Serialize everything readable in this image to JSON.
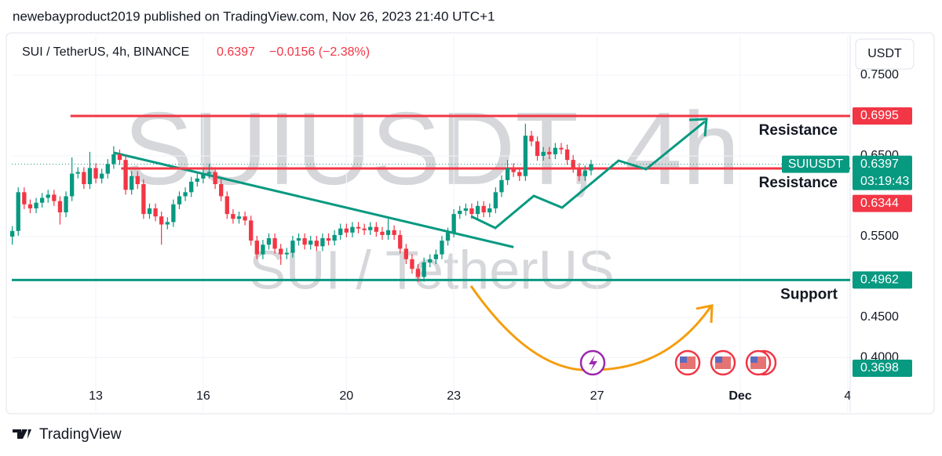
{
  "header": "newebayproduct2019 published on TradingView.com, Nov 26, 2023 21:40 UTC+1",
  "footer": "TradingView",
  "chart_data": {
    "type": "candlestick",
    "symbol": "SUI / TetherUS, 4h, BINANCE",
    "price": 0.6397,
    "change": "−0.0156 (−2.38%)",
    "currency": "USDT",
    "watermark": [
      "SUIUSDT, 4h",
      "SUI / TetherUS"
    ],
    "up_color": "#089981",
    "down_color": "#f23645",
    "xlim": [
      "2023-11-10 15:40",
      "2023-12-04 01:40"
    ],
    "xticks": [
      {
        "value": "2023-11-13 00:00",
        "label": "13"
      },
      {
        "value": "2023-11-16 00:00",
        "label": "16"
      },
      {
        "value": "2023-11-20 00:00",
        "label": "20"
      },
      {
        "value": "2023-11-23 00:00",
        "label": "23"
      },
      {
        "value": "2023-11-27 00:00",
        "label": "27"
      },
      {
        "value": "2023-12-01 00:00",
        "label": "Dec"
      },
      {
        "value": "2023-12-04 00:00",
        "label": "4"
      }
    ],
    "ylim": [
      0.3325,
      0.7995
    ],
    "yticks": [
      {
        "value": 0.4,
        "label": "0.4000"
      },
      {
        "value": 0.45,
        "label": "0.4500"
      },
      {
        "value": 0.55,
        "label": "0.5500"
      },
      {
        "value": 0.65,
        "label": "0.6500"
      },
      {
        "value": 0.75,
        "label": "0.7500"
      }
    ],
    "grid": true,
    "x": [
      "2023-11-10 16:00",
      "2023-11-10 20:00",
      "2023-11-11 00:00",
      "2023-11-11 04:00",
      "2023-11-11 08:00",
      "2023-11-11 12:00",
      "2023-11-11 16:00",
      "2023-11-11 20:00",
      "2023-11-12 00:00",
      "2023-11-12 04:00",
      "2023-11-12 08:00",
      "2023-11-12 12:00",
      "2023-11-12 16:00",
      "2023-11-12 20:00",
      "2023-11-13 00:00",
      "2023-11-13 04:00",
      "2023-11-13 08:00",
      "2023-11-13 12:00",
      "2023-11-13 16:00",
      "2023-11-13 20:00",
      "2023-11-14 00:00",
      "2023-11-14 04:00",
      "2023-11-14 08:00",
      "2023-11-14 12:00",
      "2023-11-14 16:00",
      "2023-11-14 20:00",
      "2023-11-15 00:00",
      "2023-11-15 04:00",
      "2023-11-15 08:00",
      "2023-11-15 12:00",
      "2023-11-15 16:00",
      "2023-11-15 20:00",
      "2023-11-16 00:00",
      "2023-11-16 04:00",
      "2023-11-16 08:00",
      "2023-11-16 12:00",
      "2023-11-16 16:00",
      "2023-11-16 20:00",
      "2023-11-17 00:00",
      "2023-11-17 04:00",
      "2023-11-17 08:00",
      "2023-11-17 12:00",
      "2023-11-17 16:00",
      "2023-11-17 20:00",
      "2023-11-18 00:00",
      "2023-11-18 04:00",
      "2023-11-18 08:00",
      "2023-11-18 12:00",
      "2023-11-18 16:00",
      "2023-11-18 20:00",
      "2023-11-19 00:00",
      "2023-11-19 04:00",
      "2023-11-19 08:00",
      "2023-11-19 12:00",
      "2023-11-19 16:00",
      "2023-11-19 20:00",
      "2023-11-20 00:00",
      "2023-11-20 04:00",
      "2023-11-20 08:00",
      "2023-11-20 12:00",
      "2023-11-20 16:00",
      "2023-11-20 20:00",
      "2023-11-21 00:00",
      "2023-11-21 04:00",
      "2023-11-21 08:00",
      "2023-11-21 12:00",
      "2023-11-21 16:00",
      "2023-11-21 20:00",
      "2023-11-22 00:00",
      "2023-11-22 04:00",
      "2023-11-22 08:00",
      "2023-11-22 12:00",
      "2023-11-22 16:00",
      "2023-11-22 20:00",
      "2023-11-23 00:00",
      "2023-11-23 04:00",
      "2023-11-23 08:00",
      "2023-11-23 12:00",
      "2023-11-23 16:00",
      "2023-11-23 20:00",
      "2023-11-24 00:00",
      "2023-11-24 04:00",
      "2023-11-24 08:00",
      "2023-11-24 12:00",
      "2023-11-24 16:00",
      "2023-11-24 20:00",
      "2023-11-25 00:00",
      "2023-11-25 04:00",
      "2023-11-25 08:00",
      "2023-11-25 12:00",
      "2023-11-25 16:00",
      "2023-11-25 20:00",
      "2023-11-26 00:00",
      "2023-11-26 04:00",
      "2023-11-26 08:00",
      "2023-11-26 12:00",
      "2023-11-26 16:00",
      "2023-11-26 20:00"
    ],
    "candles": [
      [
        0.55,
        0.563,
        0.54,
        0.557
      ],
      [
        0.557,
        0.611,
        0.551,
        0.605
      ],
      [
        0.605,
        0.611,
        0.584,
        0.59
      ],
      [
        0.59,
        0.596,
        0.579,
        0.585
      ],
      [
        0.585,
        0.598,
        0.579,
        0.592
      ],
      [
        0.592,
        0.604,
        0.586,
        0.598
      ],
      [
        0.598,
        0.608,
        0.592,
        0.602
      ],
      [
        0.602,
        0.608,
        0.588,
        0.594
      ],
      [
        0.594,
        0.6,
        0.565,
        0.58
      ],
      [
        0.58,
        0.606,
        0.574,
        0.6
      ],
      [
        0.6,
        0.648,
        0.594,
        0.628
      ],
      [
        0.628,
        0.636,
        0.622,
        0.63
      ],
      [
        0.63,
        0.636,
        0.609,
        0.615
      ],
      [
        0.615,
        0.655,
        0.609,
        0.635
      ],
      [
        0.635,
        0.641,
        0.616,
        0.622
      ],
      [
        0.622,
        0.634,
        0.616,
        0.628
      ],
      [
        0.628,
        0.646,
        0.622,
        0.64
      ],
      [
        0.64,
        0.662,
        0.634,
        0.652
      ],
      [
        0.652,
        0.658,
        0.639,
        0.645
      ],
      [
        0.645,
        0.651,
        0.602,
        0.608
      ],
      [
        0.608,
        0.631,
        0.602,
        0.625
      ],
      [
        0.625,
        0.631,
        0.609,
        0.615
      ],
      [
        0.615,
        0.621,
        0.572,
        0.578
      ],
      [
        0.578,
        0.591,
        0.572,
        0.585
      ],
      [
        0.585,
        0.591,
        0.569,
        0.575
      ],
      [
        0.575,
        0.581,
        0.54,
        0.565
      ],
      [
        0.565,
        0.574,
        0.559,
        0.568
      ],
      [
        0.568,
        0.596,
        0.562,
        0.59
      ],
      [
        0.59,
        0.606,
        0.584,
        0.6
      ],
      [
        0.6,
        0.611,
        0.594,
        0.605
      ],
      [
        0.605,
        0.624,
        0.599,
        0.618
      ],
      [
        0.618,
        0.628,
        0.612,
        0.622
      ],
      [
        0.622,
        0.634,
        0.616,
        0.628
      ],
      [
        0.628,
        0.64,
        0.622,
        0.63
      ],
      [
        0.63,
        0.636,
        0.609,
        0.615
      ],
      [
        0.615,
        0.621,
        0.594,
        0.6
      ],
      [
        0.6,
        0.606,
        0.572,
        0.578
      ],
      [
        0.578,
        0.584,
        0.566,
        0.572
      ],
      [
        0.572,
        0.581,
        0.566,
        0.575
      ],
      [
        0.575,
        0.581,
        0.564,
        0.57
      ],
      [
        0.57,
        0.576,
        0.539,
        0.545
      ],
      [
        0.545,
        0.551,
        0.522,
        0.528
      ],
      [
        0.528,
        0.546,
        0.522,
        0.54
      ],
      [
        0.54,
        0.554,
        0.534,
        0.548
      ],
      [
        0.548,
        0.554,
        0.529,
        0.535
      ],
      [
        0.535,
        0.541,
        0.515,
        0.528
      ],
      [
        0.528,
        0.536,
        0.522,
        0.53
      ],
      [
        0.53,
        0.551,
        0.524,
        0.545
      ],
      [
        0.545,
        0.554,
        0.539,
        0.548
      ],
      [
        0.548,
        0.554,
        0.534,
        0.54
      ],
      [
        0.54,
        0.551,
        0.534,
        0.545
      ],
      [
        0.545,
        0.551,
        0.532,
        0.538
      ],
      [
        0.538,
        0.554,
        0.532,
        0.548
      ],
      [
        0.548,
        0.554,
        0.539,
        0.545
      ],
      [
        0.545,
        0.558,
        0.539,
        0.552
      ],
      [
        0.552,
        0.566,
        0.546,
        0.56
      ],
      [
        0.56,
        0.566,
        0.549,
        0.555
      ],
      [
        0.555,
        0.568,
        0.549,
        0.562
      ],
      [
        0.562,
        0.568,
        0.554,
        0.56
      ],
      [
        0.56,
        0.566,
        0.552,
        0.558
      ],
      [
        0.558,
        0.568,
        0.552,
        0.562
      ],
      [
        0.562,
        0.568,
        0.55,
        0.556
      ],
      [
        0.556,
        0.562,
        0.546,
        0.552
      ],
      [
        0.552,
        0.572,
        0.546,
        0.558
      ],
      [
        0.558,
        0.564,
        0.546,
        0.552
      ],
      [
        0.552,
        0.558,
        0.529,
        0.535
      ],
      [
        0.535,
        0.541,
        0.516,
        0.522
      ],
      [
        0.522,
        0.528,
        0.504,
        0.51
      ],
      [
        0.51,
        0.516,
        0.494,
        0.5
      ],
      [
        0.5,
        0.524,
        0.494,
        0.518
      ],
      [
        0.518,
        0.528,
        0.512,
        0.522
      ],
      [
        0.522,
        0.534,
        0.516,
        0.528
      ],
      [
        0.528,
        0.551,
        0.522,
        0.545
      ],
      [
        0.545,
        0.561,
        0.539,
        0.555
      ],
      [
        0.555,
        0.584,
        0.549,
        0.578
      ],
      [
        0.578,
        0.588,
        0.572,
        0.582
      ],
      [
        0.582,
        0.591,
        0.576,
        0.585
      ],
      [
        0.585,
        0.591,
        0.572,
        0.578
      ],
      [
        0.578,
        0.594,
        0.572,
        0.588
      ],
      [
        0.588,
        0.594,
        0.574,
        0.58
      ],
      [
        0.58,
        0.591,
        0.574,
        0.585
      ],
      [
        0.585,
        0.611,
        0.579,
        0.605
      ],
      [
        0.605,
        0.626,
        0.599,
        0.62
      ],
      [
        0.62,
        0.645,
        0.614,
        0.635
      ],
      [
        0.635,
        0.641,
        0.624,
        0.63
      ],
      [
        0.63,
        0.636,
        0.619,
        0.625
      ],
      [
        0.625,
        0.69,
        0.619,
        0.675
      ],
      [
        0.675,
        0.681,
        0.662,
        0.668
      ],
      [
        0.668,
        0.674,
        0.644,
        0.65
      ],
      [
        0.65,
        0.661,
        0.644,
        0.655
      ],
      [
        0.655,
        0.661,
        0.646,
        0.652
      ],
      [
        0.652,
        0.666,
        0.646,
        0.66
      ],
      [
        0.66,
        0.666,
        0.652,
        0.658
      ],
      [
        0.658,
        0.664,
        0.639,
        0.645
      ],
      [
        0.645,
        0.651,
        0.629,
        0.635
      ],
      [
        0.635,
        0.641,
        0.619,
        0.625
      ],
      [
        0.625,
        0.638,
        0.619,
        0.632
      ],
      [
        0.632,
        0.645,
        0.626,
        0.6397
      ]
    ],
    "last": {
      "symbol": "SUIUSDT",
      "value": 0.6397,
      "countdown": "03:19:43",
      "color": "#089981"
    },
    "levels": [
      {
        "name": "Resistance",
        "value": 0.6995,
        "color": "#f23645",
        "start": "2023-11-12 07:00"
      },
      {
        "name": "Resistance",
        "value": 0.6344,
        "color": "#f23645",
        "start": "2023-11-13 17:00"
      },
      {
        "name": "Support",
        "value": 0.4962,
        "color": "#089981",
        "start": "2023-11-10 15:40"
      },
      {
        "value": 0.3698,
        "color": "#089981"
      }
    ],
    "trendline": {
      "x": [
        "2023-11-13 12:00",
        "2023-11-24 16:00"
      ],
      "values": [
        0.654,
        0.537
      ],
      "color": "#089981"
    }
  }
}
